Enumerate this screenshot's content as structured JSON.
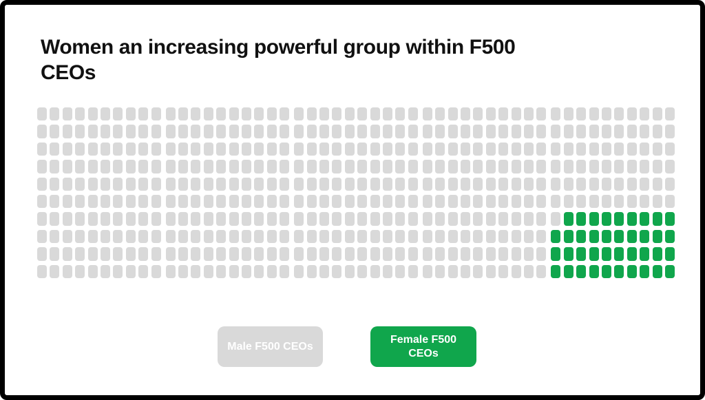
{
  "page": {
    "background_color": "#FFFFFF",
    "frame_color": "#000000"
  },
  "title_lines": {
    "line1": "Women an increasing powerful group within F500",
    "line2": "CEOs"
  },
  "chart_data": {
    "type": "waffle",
    "title": "Women an increasing powerful group within F500 CEOs",
    "total_units": 500,
    "unit_represents": "1 Fortune 500 CEO",
    "rows": 10,
    "columns": 50,
    "column_group_size": 10,
    "column_groups": 5,
    "fill_origin": "bottom-right",
    "legend_position": "bottom",
    "series": [
      {
        "name": "Male F500 CEOs",
        "value": 461,
        "color": "#D9D9D9"
      },
      {
        "name": "Female F500 CEOs",
        "value": 39,
        "color": "#10A64C"
      }
    ]
  },
  "legend": {
    "male_label": "Male F500 CEOs",
    "female_label": "Female F500 CEOs",
    "male_color": "#D9D9D9",
    "female_color": "#10A64C",
    "label_color": "#FFFFFF"
  }
}
